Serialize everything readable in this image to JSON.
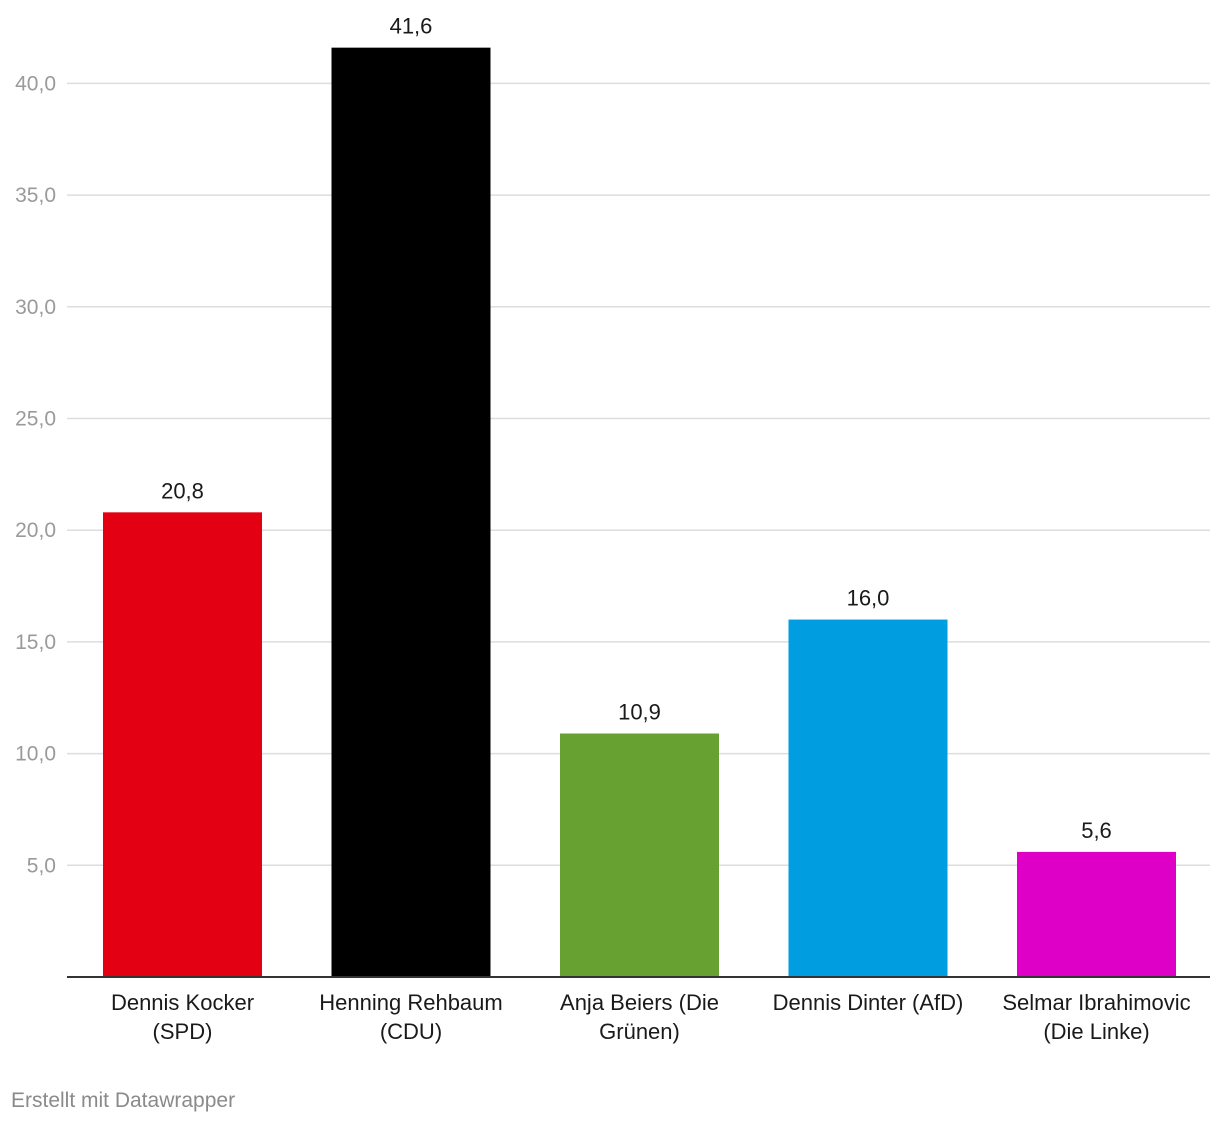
{
  "chart_data": {
    "type": "bar",
    "categories": [
      [
        "Dennis Kocker",
        "(SPD)"
      ],
      [
        "Henning Rehbaum",
        "(CDU)"
      ],
      [
        "Anja Beiers (Die",
        "Grünen)"
      ],
      [
        "Dennis Dinter (AfD)"
      ],
      [
        "Selmar Ibrahimovic",
        "(Die Linke)"
      ]
    ],
    "values": [
      20.8,
      41.6,
      10.9,
      16.0,
      5.6
    ],
    "value_labels": [
      "20,8",
      "41,6",
      "10,9",
      "16,0",
      "5,6"
    ],
    "colors": [
      "#e30013",
      "#000000",
      "#66a131",
      "#009ee0",
      "#df00c8"
    ],
    "y_ticks": [
      5,
      10,
      15,
      20,
      25,
      30,
      35,
      40
    ],
    "y_tick_labels": [
      "5,0",
      "10,0",
      "15,0",
      "20,0",
      "25,0",
      "30,0",
      "35,0",
      "40,0"
    ],
    "ylim": [
      0,
      43.6
    ],
    "title": "",
    "xlabel": "",
    "ylabel": "",
    "grid": true,
    "legend": "none"
  },
  "footer": {
    "credit": "Erstellt mit Datawrapper"
  },
  "colors": {
    "grid": "#dddddd",
    "axis": "#333333",
    "tick_label": "#9a9a9a",
    "text": "#1a1a1a"
  }
}
